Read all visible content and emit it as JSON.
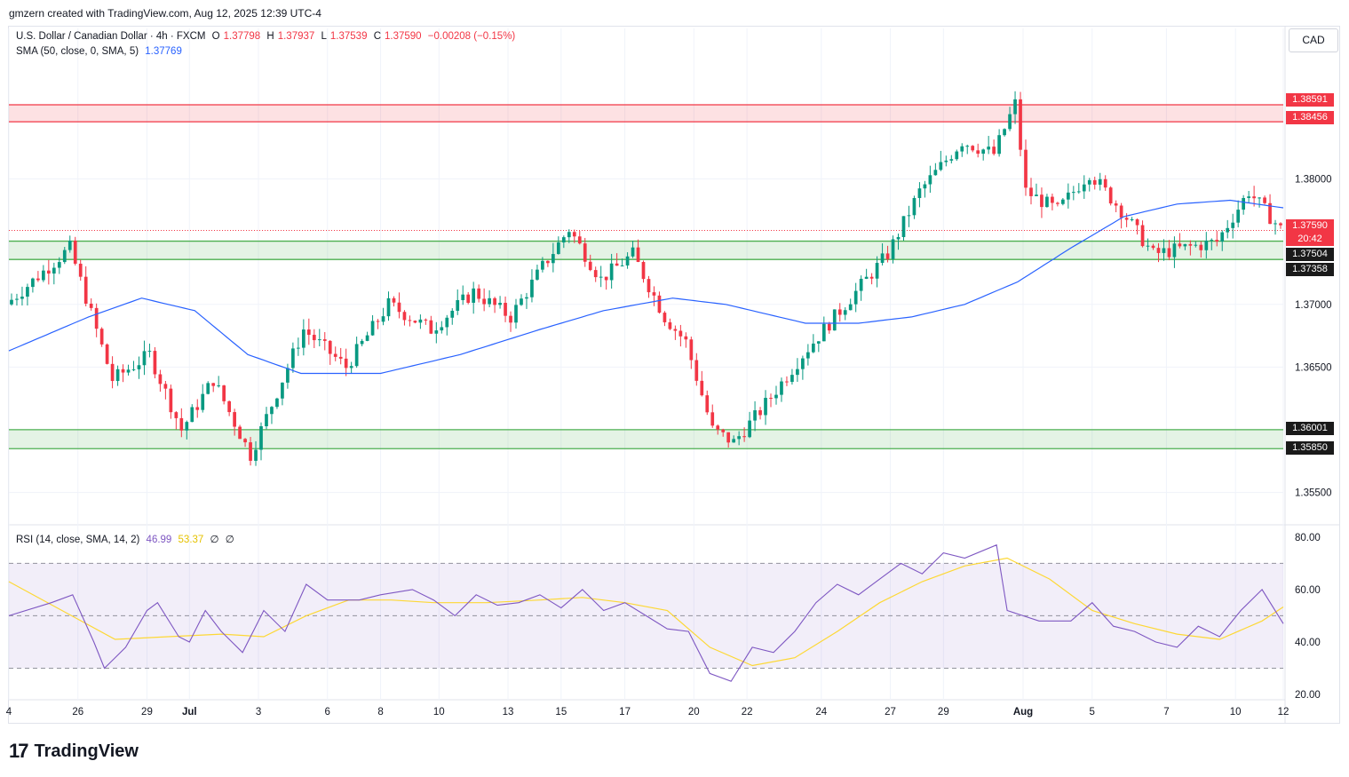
{
  "header": {
    "credit": "gmzern created with TradingView.com, Aug 12, 2025 12:39 UTC-4"
  },
  "legend": {
    "symbol": "U.S. Dollar / Canadian Dollar · 4h · FXCM",
    "o_label": "O",
    "o": "1.37798",
    "h_label": "H",
    "h": "1.37937",
    "l_label": "L",
    "l": "1.37539",
    "c_label": "C",
    "c": "1.37590",
    "change": "−0.00208 (−0.15%)",
    "sma_label": "SMA (50, close, 0, SMA, 5)",
    "sma_value": "1.37769",
    "rsi_label": "RSI (14, close, SMA, 14, 2)",
    "rsi_value": "46.99",
    "rsi_sma_value": "53.37",
    "rsi_extra1": "∅",
    "rsi_extra2": "∅"
  },
  "currency": "CAD",
  "price_tags": {
    "zone_top_upper": "1.38591",
    "zone_top_lower": "1.38456",
    "last_price": "1.37590",
    "countdown": "20:42",
    "zone_mid_upper": "1.37504",
    "zone_mid_lower": "1.37358",
    "zone_low_upper": "1.36001",
    "zone_low_lower": "1.35850"
  },
  "footer": {
    "brand": "TradingView",
    "mark": "17"
  },
  "colors": {
    "up": "#089981",
    "down": "#f23645",
    "sma": "#2962ff",
    "rsi": "#7e57c2",
    "rsi_sma": "#fdd835",
    "resistance_zone": "#f23645",
    "support_zone": "#4caf50"
  },
  "chart_data": [
    {
      "type": "candlestick",
      "title": "U.S. Dollar / Canadian Dollar · 4h · FXCM",
      "y_ticks": [
        "1.38000",
        "1.37000",
        "1.36500",
        "1.35500"
      ],
      "ylim": [
        1.3525,
        1.392
      ],
      "x_ticks": [
        "4",
        "26",
        "29",
        "Jul",
        "3",
        "6",
        "8",
        "10",
        "13",
        "15",
        "17",
        "20",
        "22",
        "24",
        "27",
        "29",
        "Aug",
        "5",
        "7",
        "10",
        "12"
      ],
      "zones": [
        {
          "kind": "resistance",
          "upper": 1.38591,
          "lower": 1.38456
        },
        {
          "kind": "support",
          "upper": 1.37504,
          "lower": 1.37358
        },
        {
          "kind": "support",
          "upper": 1.36001,
          "lower": 1.3585
        }
      ],
      "last_price": 1.3759,
      "key_points": [
        [
          0,
          1.37
        ],
        [
          12,
          1.3745
        ],
        [
          20,
          1.364
        ],
        [
          27,
          1.366
        ],
        [
          33,
          1.36
        ],
        [
          39,
          1.364
        ],
        [
          46,
          1.358
        ],
        [
          56,
          1.368
        ],
        [
          64,
          1.365
        ],
        [
          72,
          1.37
        ],
        [
          80,
          1.368
        ],
        [
          88,
          1.371
        ],
        [
          95,
          1.369
        ],
        [
          101,
          1.373
        ],
        [
          106,
          1.376
        ],
        [
          112,
          1.372
        ],
        [
          118,
          1.374
        ],
        [
          124,
          1.369
        ],
        [
          128,
          1.367
        ],
        [
          133,
          1.36
        ],
        [
          137,
          1.359
        ],
        [
          142,
          1.3615
        ],
        [
          150,
          1.366
        ],
        [
          158,
          1.37
        ],
        [
          166,
          1.374
        ],
        [
          172,
          1.379
        ],
        [
          180,
          1.383
        ],
        [
          186,
          1.382
        ],
        [
          190,
          1.386
        ],
        [
          192,
          1.379
        ],
        [
          198,
          1.3775
        ],
        [
          204,
          1.3805
        ],
        [
          210,
          1.3775
        ],
        [
          216,
          1.374
        ],
        [
          222,
          1.3745
        ],
        [
          228,
          1.375
        ],
        [
          234,
          1.379
        ],
        [
          240,
          1.376
        ]
      ],
      "sma_points": [
        [
          0,
          1.3663
        ],
        [
          15,
          1.369
        ],
        [
          25,
          1.3705
        ],
        [
          35,
          1.3695
        ],
        [
          45,
          1.366
        ],
        [
          55,
          1.3645
        ],
        [
          70,
          1.3645
        ],
        [
          85,
          1.366
        ],
        [
          100,
          1.368
        ],
        [
          112,
          1.3695
        ],
        [
          125,
          1.3705
        ],
        [
          135,
          1.37
        ],
        [
          150,
          1.3685
        ],
        [
          160,
          1.3685
        ],
        [
          170,
          1.369
        ],
        [
          180,
          1.37
        ],
        [
          190,
          1.3718
        ],
        [
          200,
          1.3745
        ],
        [
          210,
          1.377
        ],
        [
          220,
          1.378
        ],
        [
          230,
          1.3783
        ],
        [
          240,
          1.3777
        ]
      ]
    },
    {
      "type": "line",
      "title": "RSI (14, close, SMA, 14, 2)",
      "y_ticks": [
        "80.00",
        "60.00",
        "40.00",
        "20.00"
      ],
      "ylim": [
        20,
        80
      ],
      "bands": [
        30,
        50,
        70
      ],
      "rsi_points": [
        [
          0,
          50
        ],
        [
          8,
          55
        ],
        [
          12,
          58
        ],
        [
          16,
          40
        ],
        [
          18,
          30
        ],
        [
          22,
          38
        ],
        [
          26,
          52
        ],
        [
          28,
          55
        ],
        [
          32,
          42
        ],
        [
          34,
          40
        ],
        [
          37,
          52
        ],
        [
          40,
          44
        ],
        [
          44,
          36
        ],
        [
          48,
          52
        ],
        [
          52,
          44
        ],
        [
          56,
          62
        ],
        [
          60,
          56
        ],
        [
          66,
          56
        ],
        [
          70,
          58
        ],
        [
          76,
          60
        ],
        [
          80,
          56
        ],
        [
          84,
          50
        ],
        [
          88,
          58
        ],
        [
          92,
          54
        ],
        [
          96,
          55
        ],
        [
          100,
          58
        ],
        [
          104,
          53
        ],
        [
          108,
          60
        ],
        [
          112,
          52
        ],
        [
          116,
          55
        ],
        [
          120,
          50
        ],
        [
          124,
          45
        ],
        [
          128,
          44
        ],
        [
          132,
          28
        ],
        [
          136,
          25
        ],
        [
          140,
          38
        ],
        [
          144,
          36
        ],
        [
          148,
          44
        ],
        [
          152,
          55
        ],
        [
          156,
          62
        ],
        [
          160,
          58
        ],
        [
          164,
          64
        ],
        [
          168,
          70
        ],
        [
          172,
          66
        ],
        [
          176,
          74
        ],
        [
          180,
          72
        ],
        [
          186,
          77
        ],
        [
          188,
          52
        ],
        [
          194,
          48
        ],
        [
          200,
          48
        ],
        [
          204,
          55
        ],
        [
          208,
          46
        ],
        [
          212,
          44
        ],
        [
          216,
          40
        ],
        [
          220,
          38
        ],
        [
          224,
          46
        ],
        [
          228,
          42
        ],
        [
          232,
          52
        ],
        [
          236,
          60
        ],
        [
          240,
          46.99
        ]
      ],
      "rsi_sma_points": [
        [
          0,
          63
        ],
        [
          10,
          52
        ],
        [
          20,
          41
        ],
        [
          30,
          42
        ],
        [
          40,
          43
        ],
        [
          48,
          42
        ],
        [
          56,
          50
        ],
        [
          64,
          56
        ],
        [
          72,
          56
        ],
        [
          80,
          55
        ],
        [
          90,
          55
        ],
        [
          100,
          56
        ],
        [
          108,
          57
        ],
        [
          116,
          55
        ],
        [
          124,
          52
        ],
        [
          132,
          38
        ],
        [
          140,
          31
        ],
        [
          148,
          34
        ],
        [
          156,
          44
        ],
        [
          164,
          55
        ],
        [
          172,
          63
        ],
        [
          180,
          69
        ],
        [
          188,
          72
        ],
        [
          196,
          64
        ],
        [
          204,
          52
        ],
        [
          212,
          47
        ],
        [
          220,
          43
        ],
        [
          228,
          41
        ],
        [
          236,
          48
        ],
        [
          240,
          53.37
        ]
      ]
    }
  ]
}
